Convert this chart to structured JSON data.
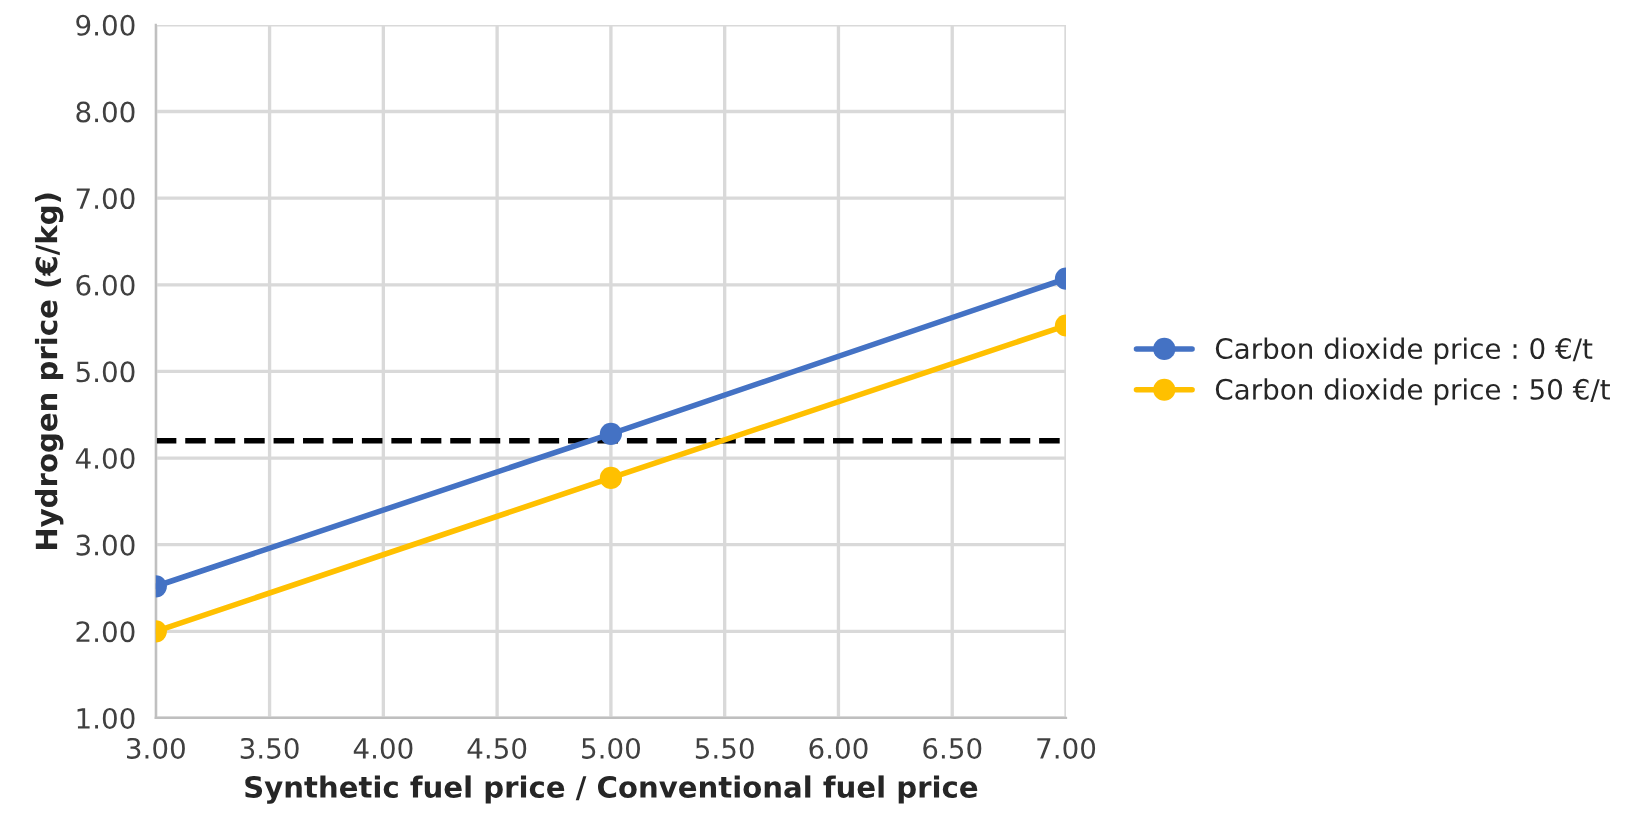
{
  "chart_data": {
    "type": "line",
    "xlabel": "Synthetic fuel price / Conventional fuel price",
    "ylabel": "Hydrogen price (€/kg)",
    "x": [
      3,
      5,
      7
    ],
    "series": [
      {
        "name": "Carbon dioxide price : 0 €/t",
        "color": "#4472c4",
        "values": [
          2.52,
          4.28,
          6.07
        ]
      },
      {
        "name": "Carbon dioxide price : 50 €/t",
        "color": "#ffc000",
        "values": [
          2.0,
          3.77,
          5.53
        ]
      }
    ],
    "ref_lines": [
      {
        "axis": "y",
        "value": 4.2,
        "color": "#000000",
        "line_style": "dashed"
      }
    ],
    "xlim": [
      3,
      7
    ],
    "xticks": [
      {
        "value": 3,
        "label": "3.00"
      },
      {
        "value": 3.5,
        "label": "3.50"
      },
      {
        "value": 4,
        "label": "4.00"
      },
      {
        "value": 4.5,
        "label": "4.50"
      },
      {
        "value": 5,
        "label": "5.00"
      },
      {
        "value": 5.5,
        "label": "5.50"
      },
      {
        "value": 6,
        "label": "6.00"
      },
      {
        "value": 6.5,
        "label": "6.50"
      },
      {
        "value": 7,
        "label": "7.00"
      }
    ],
    "ylim": [
      1,
      9
    ],
    "yticks": [
      {
        "value": 1,
        "label": "1.00"
      },
      {
        "value": 2,
        "label": "2.00"
      },
      {
        "value": 3,
        "label": "3.00"
      },
      {
        "value": 4,
        "label": "4.00"
      },
      {
        "value": 5,
        "label": "5.00"
      },
      {
        "value": 6,
        "label": "6.00"
      },
      {
        "value": 7,
        "label": "7.00"
      },
      {
        "value": 8,
        "label": "8.00"
      },
      {
        "value": 9,
        "label": "9.00"
      }
    ],
    "grid": true,
    "legend": "right",
    "marker": "circle",
    "line_style": "solid"
  }
}
